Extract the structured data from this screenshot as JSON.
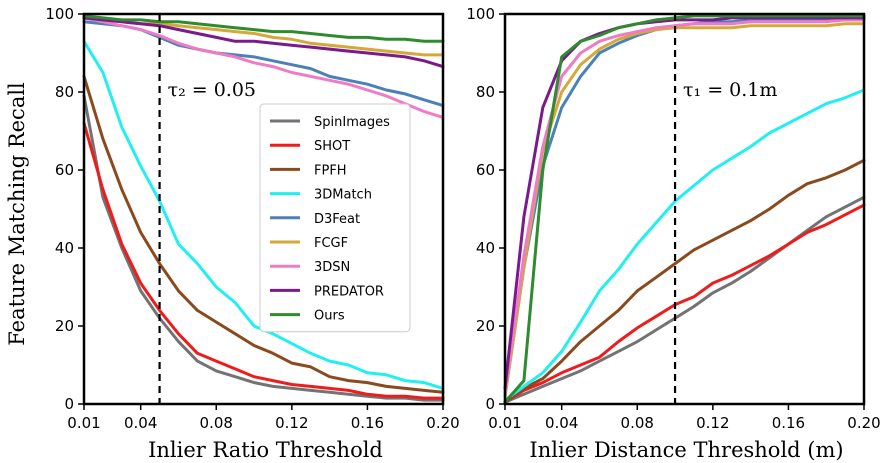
{
  "figure": {
    "ylabel": "Feature Matching Recall"
  },
  "series_styles": [
    {
      "name": "SpinImages",
      "color": "#737373"
    },
    {
      "name": "SHOT",
      "color": "#ee1c1c"
    },
    {
      "name": "FPFH",
      "color": "#8b4a1e"
    },
    {
      "name": "3DMatch",
      "color": "#22f0f0"
    },
    {
      "name": "D3Feat",
      "color": "#4a82b8"
    },
    {
      "name": "FCGF",
      "color": "#d4a93a"
    },
    {
      "name": "3DSN",
      "color": "#f07bc5"
    },
    {
      "name": "PREDATOR",
      "color": "#7a1a8c"
    },
    {
      "name": "Ours",
      "color": "#2e8b2e"
    }
  ],
  "chart_data": [
    {
      "type": "line",
      "xlabel": "Inlier Ratio Threshold",
      "ylabel": "Feature Matching Recall",
      "xlim": [
        0.01,
        0.2
      ],
      "ylim": [
        0,
        100
      ],
      "xticks": [
        0.01,
        0.04,
        0.08,
        0.12,
        0.16,
        0.2
      ],
      "xtick_labels": [
        "0.01",
        "0.04",
        "0.08",
        "0.12",
        "0.16",
        "0.20"
      ],
      "yticks": [
        0,
        20,
        40,
        60,
        80,
        100
      ],
      "ytick_labels": [
        "0",
        "20",
        "40",
        "60",
        "80",
        "100"
      ],
      "vline": {
        "x": 0.05,
        "label": "τ₂ = 0.05"
      },
      "legend": "center-right",
      "x": [
        0.01,
        0.02,
        0.03,
        0.04,
        0.05,
        0.06,
        0.07,
        0.08,
        0.09,
        0.1,
        0.11,
        0.12,
        0.13,
        0.14,
        0.15,
        0.16,
        0.17,
        0.18,
        0.19,
        0.2
      ],
      "series": [
        {
          "name": "SpinImages",
          "values": [
            79,
            53,
            40,
            29,
            22,
            16,
            11,
            8.5,
            7,
            5.5,
            4.5,
            4,
            3.5,
            3,
            2.5,
            2,
            1.5,
            1.5,
            1,
            1
          ]
        },
        {
          "name": "SHOT",
          "values": [
            72,
            55,
            41,
            31,
            24,
            18,
            13,
            11,
            9,
            7,
            6,
            5,
            4.5,
            4,
            3.5,
            2.5,
            2,
            2,
            1.5,
            1.5
          ]
        },
        {
          "name": "FPFH",
          "values": [
            84,
            68,
            55,
            44,
            36,
            29,
            24,
            21,
            18,
            15,
            13,
            10.5,
            9.5,
            7,
            6,
            5.5,
            4.5,
            4,
            3.5,
            3
          ]
        },
        {
          "name": "3DMatch",
          "values": [
            93,
            85,
            71,
            61,
            52,
            41,
            36,
            30,
            26,
            20,
            18,
            15.5,
            13,
            11,
            10,
            8,
            7.5,
            6,
            5.5,
            4
          ]
        },
        {
          "name": "D3Feat",
          "values": [
            98,
            97.5,
            97,
            96,
            94,
            92,
            91,
            90,
            89.5,
            89,
            88,
            87,
            86,
            84,
            83,
            82,
            80.5,
            79.5,
            78,
            76.5
          ]
        },
        {
          "name": "FCGF",
          "values": [
            99,
            98.5,
            98,
            97.5,
            97.5,
            97,
            96.5,
            96,
            95.5,
            95,
            94,
            93.5,
            92.5,
            92,
            91.5,
            91,
            90.5,
            90,
            89.5,
            89.5
          ]
        },
        {
          "name": "3DSN",
          "values": [
            99,
            98,
            97,
            96,
            94.5,
            92.5,
            91,
            90,
            89,
            87.5,
            86.5,
            85,
            84,
            83,
            82,
            80.5,
            79,
            77,
            75,
            73.5
          ]
        },
        {
          "name": "PREDATOR",
          "values": [
            99,
            98.5,
            98,
            97.5,
            97,
            96,
            95,
            94,
            93,
            93,
            92.5,
            92,
            91.5,
            91,
            90.5,
            90,
            89.5,
            89,
            88,
            86.5
          ]
        },
        {
          "name": "Ours",
          "values": [
            99.5,
            99,
            98.5,
            98.5,
            98,
            98,
            97.5,
            97,
            96.5,
            96,
            95.5,
            95.5,
            95,
            94.5,
            94,
            94,
            93.5,
            93.5,
            93,
            93
          ]
        }
      ]
    },
    {
      "type": "line",
      "xlabel": "Inlier Distance Threshold (m)",
      "ylabel": "",
      "xlim": [
        0.01,
        0.2
      ],
      "ylim": [
        0,
        100
      ],
      "xticks": [
        0.01,
        0.04,
        0.08,
        0.12,
        0.16,
        0.2
      ],
      "xtick_labels": [
        "0.01",
        "0.04",
        "0.08",
        "0.12",
        "0.16",
        "0.20"
      ],
      "yticks": [
        0,
        20,
        40,
        60,
        80,
        100
      ],
      "ytick_labels": [
        "0",
        "20",
        "40",
        "60",
        "80",
        "100"
      ],
      "vline": {
        "x": 0.1,
        "label": "τ₁ = 0.1m"
      },
      "legend": "none",
      "x": [
        0.01,
        0.02,
        0.03,
        0.04,
        0.05,
        0.06,
        0.07,
        0.08,
        0.09,
        0.1,
        0.11,
        0.12,
        0.13,
        0.14,
        0.15,
        0.16,
        0.17,
        0.18,
        0.19,
        0.2
      ],
      "series": [
        {
          "name": "SpinImages",
          "values": [
            0.5,
            2.5,
            4.5,
            6.5,
            8.5,
            11,
            13.5,
            16,
            19,
            22,
            25,
            28.5,
            31,
            34,
            37.5,
            41,
            44.5,
            48,
            50.5,
            53
          ]
        },
        {
          "name": "SHOT",
          "values": [
            0.5,
            3.5,
            5.5,
            8,
            10,
            12,
            16,
            19.5,
            22.5,
            25.5,
            27.5,
            31,
            33,
            35.5,
            38,
            41,
            44,
            46,
            48.5,
            51
          ]
        },
        {
          "name": "FPFH",
          "values": [
            0.5,
            4,
            6.5,
            11,
            16,
            20,
            24,
            29,
            32.5,
            36,
            39.5,
            42,
            44.5,
            47,
            50,
            53.5,
            56.5,
            58,
            60,
            62.5
          ]
        },
        {
          "name": "3DMatch",
          "values": [
            1,
            4.5,
            8,
            13.5,
            21,
            29,
            34.5,
            41,
            46.5,
            52,
            56,
            60,
            63,
            66,
            69.5,
            72,
            74.5,
            77,
            78.5,
            80.5
          ]
        },
        {
          "name": "D3Feat",
          "values": [
            2,
            35,
            61,
            76,
            84,
            90,
            92.5,
            94.5,
            96,
            97,
            97.5,
            98,
            98,
            98.5,
            98.5,
            98.5,
            98.5,
            98.5,
            98.5,
            98.5
          ]
        },
        {
          "name": "FCGF",
          "values": [
            2,
            35,
            65,
            80,
            87,
            91,
            93.5,
            95,
            96,
            96.5,
            96.5,
            96.5,
            96.5,
            97,
            97,
            97,
            97,
            97,
            97.5,
            97.5
          ]
        },
        {
          "name": "3DSN",
          "values": [
            3,
            38,
            66,
            84,
            90,
            93,
            94.5,
            95.5,
            96.5,
            97,
            97.5,
            97.5,
            97.5,
            98,
            98,
            98,
            98,
            98,
            98.5,
            98.5
          ]
        },
        {
          "name": "PREDATOR",
          "values": [
            4,
            48,
            76,
            88,
            93,
            95,
            96.5,
            97.5,
            98,
            98.5,
            98.5,
            98.5,
            99,
            99,
            99,
            99,
            99,
            99,
            99,
            99
          ]
        },
        {
          "name": "Ours",
          "values": [
            0.5,
            6,
            60,
            89,
            93,
            94.5,
            96.5,
            97.5,
            98.5,
            99,
            99.5,
            99.5,
            99.5,
            99.5,
            99.5,
            99.5,
            99.5,
            99.5,
            99.5,
            99.5
          ]
        }
      ]
    }
  ]
}
